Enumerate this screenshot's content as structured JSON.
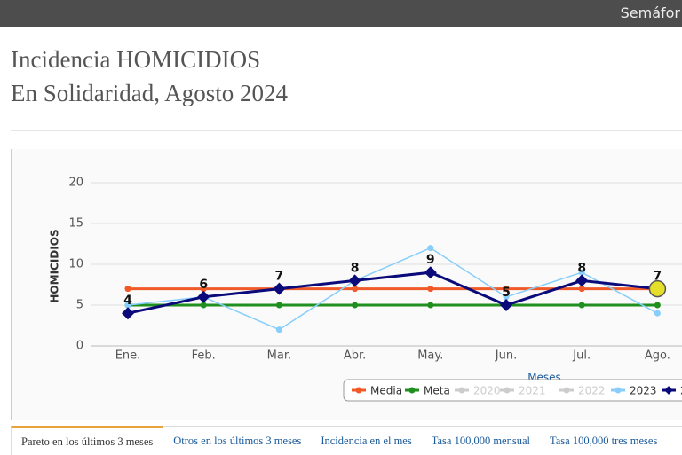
{
  "topbar": {
    "label": "Semáfor"
  },
  "title": [
    "Incidencia HOMICIDIOS",
    "En Solidaridad, Agosto 2024"
  ],
  "chart_data": {
    "type": "line",
    "categories": [
      "Ene.",
      "Feb.",
      "Mar.",
      "Abr.",
      "May.",
      "Jun.",
      "Jul.",
      "Ago."
    ],
    "x_label": "Meses",
    "y_label": "HOMICIDIOS",
    "ylim": [
      0,
      20
    ],
    "yticks": [
      0,
      5,
      10,
      15,
      20
    ],
    "grid": true,
    "series": [
      {
        "name": "Media",
        "color": "#f05a28",
        "marker": "circle",
        "values": [
          7,
          7,
          7,
          7,
          7,
          7,
          7,
          7
        ]
      },
      {
        "name": "Meta",
        "color": "#1f8f1f",
        "marker": "circle",
        "values": [
          5,
          5,
          5,
          5,
          5,
          5,
          5,
          5
        ]
      },
      {
        "name": "2020",
        "color": "#cccccc",
        "hidden": true
      },
      {
        "name": "2021",
        "color": "#cccccc",
        "hidden": true
      },
      {
        "name": "2022",
        "color": "#cccccc",
        "hidden": true
      },
      {
        "name": "2023",
        "color": "#87cefa",
        "marker": "circle",
        "values": [
          5,
          6,
          2,
          8,
          12,
          6,
          9,
          4
        ]
      },
      {
        "name": "2",
        "color": "#0a0a7a",
        "marker": "diamond",
        "data_labels": true,
        "values": [
          4,
          6,
          7,
          8,
          9,
          5,
          8,
          7
        ]
      }
    ]
  },
  "tabs": [
    "Pareto en los últimos 3 meses",
    "Otros en los últimos 3 meses",
    "Incidencia en el mes",
    "Tasa 100,000 mensual",
    "Tasa 100,000 tres meses"
  ]
}
